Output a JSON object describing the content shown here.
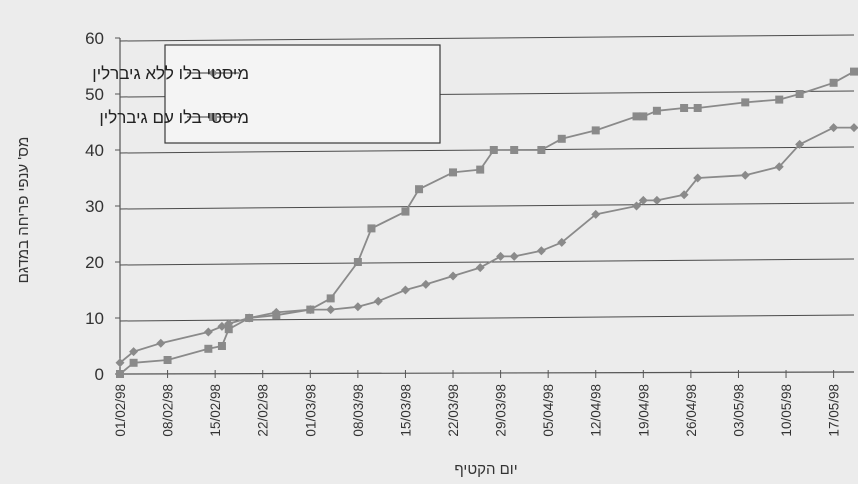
{
  "chart_data": {
    "type": "line",
    "title": "",
    "xlabel": "יום הקטיף",
    "ylabel": "מס' ענפי פריחה במדגם",
    "ylim": [
      0,
      60
    ],
    "yticks": [
      0,
      10,
      20,
      30,
      40,
      50,
      60
    ],
    "xlim": [
      "01/02/98",
      "20/05/98"
    ],
    "xticks": [
      "01/02/98",
      "08/02/98",
      "15/02/98",
      "22/02/98",
      "01/03/98",
      "08/03/98",
      "15/03/98",
      "22/03/98",
      "29/03/98",
      "05/04/98",
      "12/04/98",
      "19/04/98",
      "26/04/98",
      "03/05/98",
      "10/05/98",
      "17/05/98"
    ],
    "grid": "horizontal",
    "legend_position": "top-left",
    "series": [
      {
        "name": "מיסטי בלו ללא גיברלין",
        "marker": "diamond",
        "color": "#8a8a8a",
        "points": [
          {
            "x": "01/02/98",
            "y": 2
          },
          {
            "x": "03/02/98",
            "y": 4
          },
          {
            "x": "07/02/98",
            "y": 5.5
          },
          {
            "x": "14/02/98",
            "y": 7.5
          },
          {
            "x": "16/02/98",
            "y": 8.5
          },
          {
            "x": "17/02/98",
            "y": 9
          },
          {
            "x": "20/02/98",
            "y": 10
          },
          {
            "x": "24/02/98",
            "y": 11
          },
          {
            "x": "01/03/98",
            "y": 11.5
          },
          {
            "x": "04/03/98",
            "y": 11.5
          },
          {
            "x": "08/03/98",
            "y": 12
          },
          {
            "x": "11/03/98",
            "y": 13
          },
          {
            "x": "15/03/98",
            "y": 15
          },
          {
            "x": "18/03/98",
            "y": 16
          },
          {
            "x": "22/03/98",
            "y": 17.5
          },
          {
            "x": "26/03/98",
            "y": 19
          },
          {
            "x": "29/03/98",
            "y": 21
          },
          {
            "x": "31/03/98",
            "y": 21
          },
          {
            "x": "04/04/98",
            "y": 22
          },
          {
            "x": "07/04/98",
            "y": 23.5
          },
          {
            "x": "12/04/98",
            "y": 28.5
          },
          {
            "x": "18/04/98",
            "y": 30
          },
          {
            "x": "19/04/98",
            "y": 31
          },
          {
            "x": "21/04/98",
            "y": 31
          },
          {
            "x": "25/04/98",
            "y": 32
          },
          {
            "x": "27/04/98",
            "y": 35
          },
          {
            "x": "04/05/98",
            "y": 35.5
          },
          {
            "x": "09/05/98",
            "y": 37
          },
          {
            "x": "12/05/98",
            "y": 41
          },
          {
            "x": "17/05/98",
            "y": 44
          },
          {
            "x": "20/05/98",
            "y": 44
          }
        ]
      },
      {
        "name": "מיסטי בלו עם גיברלין",
        "marker": "square",
        "color": "#8a8a8a",
        "points": [
          {
            "x": "01/02/98",
            "y": 0
          },
          {
            "x": "03/02/98",
            "y": 2
          },
          {
            "x": "08/02/98",
            "y": 2.5
          },
          {
            "x": "14/02/98",
            "y": 4.5
          },
          {
            "x": "16/02/98",
            "y": 5
          },
          {
            "x": "17/02/98",
            "y": 8
          },
          {
            "x": "20/02/98",
            "y": 10
          },
          {
            "x": "24/02/98",
            "y": 10.5
          },
          {
            "x": "01/03/98",
            "y": 11.5
          },
          {
            "x": "04/03/98",
            "y": 13.5
          },
          {
            "x": "08/03/98",
            "y": 20
          },
          {
            "x": "10/03/98",
            "y": 26
          },
          {
            "x": "15/03/98",
            "y": 29
          },
          {
            "x": "17/03/98",
            "y": 33
          },
          {
            "x": "22/03/98",
            "y": 36
          },
          {
            "x": "26/03/98",
            "y": 36.5
          },
          {
            "x": "28/03/98",
            "y": 40
          },
          {
            "x": "31/03/98",
            "y": 40
          },
          {
            "x": "04/04/98",
            "y": 40
          },
          {
            "x": "07/04/98",
            "y": 42
          },
          {
            "x": "12/04/98",
            "y": 43.5
          },
          {
            "x": "18/04/98",
            "y": 46
          },
          {
            "x": "19/04/98",
            "y": 46
          },
          {
            "x": "21/04/98",
            "y": 47
          },
          {
            "x": "25/04/98",
            "y": 47.5
          },
          {
            "x": "27/04/98",
            "y": 47.5
          },
          {
            "x": "04/05/98",
            "y": 48.5
          },
          {
            "x": "09/05/98",
            "y": 49
          },
          {
            "x": "12/05/98",
            "y": 50
          },
          {
            "x": "17/05/98",
            "y": 52
          },
          {
            "x": "20/05/98",
            "y": 54
          }
        ]
      }
    ]
  }
}
